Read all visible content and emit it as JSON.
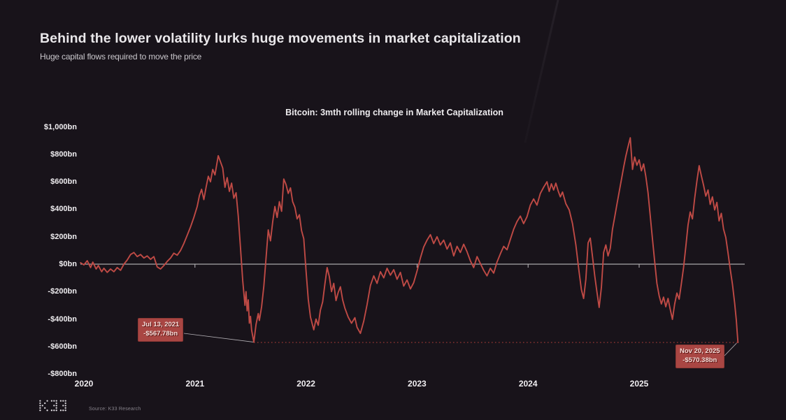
{
  "page": {
    "title": "Behind the lower volatility lurks huge movements in market capitalization",
    "subtitle": "Huge capital flows required to move the price"
  },
  "footer": {
    "source": "Source: K33 Research",
    "logo": "K33"
  },
  "colors": {
    "background": "#18131a",
    "line": "#bf4a45",
    "zero_line": "#cccccc",
    "dotted_line": "#8e3532",
    "annotation_bg": "#a94643",
    "annotation_text": "#f7dfdb",
    "axis_text": "#f0eef1"
  },
  "chart_data": {
    "type": "line",
    "title": "Bitcoin: 3mth rolling change in Market Capitalization",
    "xlabel": "",
    "ylabel": "",
    "x_ticks": [
      "2020",
      "2021",
      "2022",
      "2023",
      "2024",
      "2025"
    ],
    "x_tick_values": [
      2020,
      2021,
      2022,
      2023,
      2024,
      2025
    ],
    "y_ticks": [
      "$1,000bn",
      "$800bn",
      "$600bn",
      "$400bn",
      "$200bn",
      "$0bn",
      "-$200bn",
      "-$400bn",
      "-$600bn",
      "-$800bn"
    ],
    "y_tick_values": [
      1000,
      800,
      600,
      400,
      200,
      0,
      -200,
      -400,
      -600,
      -800
    ],
    "xlim": [
      2019.95,
      2025.95
    ],
    "ylim": [
      -800,
      1000
    ],
    "grid": false,
    "legend": "none",
    "zero_line_value": 0,
    "dotted_line_value": -570.38,
    "annotations": [
      {
        "date": "Jul 13, 2021",
        "value_label": "-$567.78bn",
        "x": 2021.53,
        "y": -567.78
      },
      {
        "date": "Nov 20, 2025",
        "value_label": "-$570.38bn",
        "x": 2025.89,
        "y": -570.38
      }
    ],
    "series": [
      {
        "name": "3mth rolling change in market capitalization ($bn)",
        "color": "#bf4a45",
        "points": [
          [
            2019.97,
            10
          ],
          [
            2020.0,
            -5
          ],
          [
            2020.03,
            25
          ],
          [
            2020.06,
            -25
          ],
          [
            2020.08,
            15
          ],
          [
            2020.11,
            -35
          ],
          [
            2020.13,
            -10
          ],
          [
            2020.16,
            -55
          ],
          [
            2020.18,
            -30
          ],
          [
            2020.21,
            -60
          ],
          [
            2020.24,
            -35
          ],
          [
            2020.27,
            -55
          ],
          [
            2020.3,
            -25
          ],
          [
            2020.33,
            -45
          ],
          [
            2020.36,
            0
          ],
          [
            2020.39,
            30
          ],
          [
            2020.42,
            70
          ],
          [
            2020.45,
            85
          ],
          [
            2020.48,
            55
          ],
          [
            2020.51,
            70
          ],
          [
            2020.54,
            45
          ],
          [
            2020.57,
            60
          ],
          [
            2020.6,
            35
          ],
          [
            2020.63,
            55
          ],
          [
            2020.66,
            -20
          ],
          [
            2020.69,
            -35
          ],
          [
            2020.72,
            -10
          ],
          [
            2020.75,
            20
          ],
          [
            2020.78,
            45
          ],
          [
            2020.81,
            80
          ],
          [
            2020.84,
            65
          ],
          [
            2020.87,
            100
          ],
          [
            2020.9,
            150
          ],
          [
            2020.93,
            210
          ],
          [
            2020.96,
            270
          ],
          [
            2020.99,
            340
          ],
          [
            2021.02,
            420
          ],
          [
            2021.04,
            500
          ],
          [
            2021.06,
            545
          ],
          [
            2021.08,
            470
          ],
          [
            2021.1,
            560
          ],
          [
            2021.12,
            640
          ],
          [
            2021.14,
            600
          ],
          [
            2021.16,
            690
          ],
          [
            2021.18,
            650
          ],
          [
            2021.21,
            790
          ],
          [
            2021.23,
            745
          ],
          [
            2021.25,
            700
          ],
          [
            2021.27,
            560
          ],
          [
            2021.29,
            630
          ],
          [
            2021.31,
            530
          ],
          [
            2021.33,
            590
          ],
          [
            2021.35,
            480
          ],
          [
            2021.37,
            520
          ],
          [
            2021.39,
            350
          ],
          [
            2021.41,
            120
          ],
          [
            2021.43,
            -120
          ],
          [
            2021.45,
            -300
          ],
          [
            2021.46,
            -200
          ],
          [
            2021.47,
            -340
          ],
          [
            2021.48,
            -260
          ],
          [
            2021.49,
            -430
          ],
          [
            2021.5,
            -380
          ],
          [
            2021.51,
            -480
          ],
          [
            2021.53,
            -567.78
          ],
          [
            2021.55,
            -440
          ],
          [
            2021.57,
            -360
          ],
          [
            2021.58,
            -410
          ],
          [
            2021.6,
            -310
          ],
          [
            2021.62,
            -160
          ],
          [
            2021.64,
            40
          ],
          [
            2021.66,
            250
          ],
          [
            2021.68,
            170
          ],
          [
            2021.7,
            310
          ],
          [
            2021.72,
            420
          ],
          [
            2021.74,
            340
          ],
          [
            2021.76,
            455
          ],
          [
            2021.78,
            385
          ],
          [
            2021.8,
            620
          ],
          [
            2021.82,
            580
          ],
          [
            2021.84,
            515
          ],
          [
            2021.86,
            555
          ],
          [
            2021.88,
            455
          ],
          [
            2021.9,
            415
          ],
          [
            2021.92,
            330
          ],
          [
            2021.94,
            360
          ],
          [
            2021.96,
            245
          ],
          [
            2021.98,
            185
          ],
          [
            2022.0,
            -45
          ],
          [
            2022.02,
            -255
          ],
          [
            2022.04,
            -385
          ],
          [
            2022.07,
            -478
          ],
          [
            2022.09,
            -400
          ],
          [
            2022.11,
            -445
          ],
          [
            2022.13,
            -335
          ],
          [
            2022.15,
            -275
          ],
          [
            2022.17,
            -145
          ],
          [
            2022.19,
            -25
          ],
          [
            2022.21,
            -90
          ],
          [
            2022.23,
            -200
          ],
          [
            2022.25,
            -140
          ],
          [
            2022.27,
            -265
          ],
          [
            2022.29,
            -205
          ],
          [
            2022.31,
            -165
          ],
          [
            2022.33,
            -260
          ],
          [
            2022.35,
            -320
          ],
          [
            2022.38,
            -385
          ],
          [
            2022.41,
            -430
          ],
          [
            2022.44,
            -390
          ],
          [
            2022.46,
            -460
          ],
          [
            2022.49,
            -504
          ],
          [
            2022.52,
            -415
          ],
          [
            2022.55,
            -295
          ],
          [
            2022.58,
            -155
          ],
          [
            2022.61,
            -85
          ],
          [
            2022.64,
            -140
          ],
          [
            2022.67,
            -55
          ],
          [
            2022.7,
            -100
          ],
          [
            2022.73,
            -30
          ],
          [
            2022.76,
            -80
          ],
          [
            2022.79,
            -40
          ],
          [
            2022.82,
            -110
          ],
          [
            2022.85,
            -60
          ],
          [
            2022.88,
            -160
          ],
          [
            2022.91,
            -115
          ],
          [
            2022.94,
            -180
          ],
          [
            2022.97,
            -135
          ],
          [
            2023.0,
            -50
          ],
          [
            2023.03,
            45
          ],
          [
            2023.06,
            125
          ],
          [
            2023.09,
            175
          ],
          [
            2023.12,
            215
          ],
          [
            2023.15,
            150
          ],
          [
            2023.18,
            200
          ],
          [
            2023.21,
            140
          ],
          [
            2023.24,
            175
          ],
          [
            2023.27,
            110
          ],
          [
            2023.3,
            155
          ],
          [
            2023.33,
            60
          ],
          [
            2023.36,
            130
          ],
          [
            2023.39,
            85
          ],
          [
            2023.42,
            145
          ],
          [
            2023.45,
            90
          ],
          [
            2023.48,
            25
          ],
          [
            2023.51,
            -25
          ],
          [
            2023.54,
            55
          ],
          [
            2023.57,
            5
          ],
          [
            2023.6,
            -45
          ],
          [
            2023.63,
            -85
          ],
          [
            2023.66,
            -30
          ],
          [
            2023.69,
            -65
          ],
          [
            2023.72,
            15
          ],
          [
            2023.75,
            75
          ],
          [
            2023.78,
            130
          ],
          [
            2023.81,
            105
          ],
          [
            2023.84,
            180
          ],
          [
            2023.87,
            255
          ],
          [
            2023.9,
            310
          ],
          [
            2023.93,
            350
          ],
          [
            2023.96,
            295
          ],
          [
            2023.99,
            345
          ],
          [
            2024.02,
            430
          ],
          [
            2024.05,
            475
          ],
          [
            2024.08,
            430
          ],
          [
            2024.11,
            515
          ],
          [
            2024.14,
            560
          ],
          [
            2024.17,
            600
          ],
          [
            2024.19,
            530
          ],
          [
            2024.21,
            585
          ],
          [
            2024.23,
            540
          ],
          [
            2024.25,
            590
          ],
          [
            2024.27,
            535
          ],
          [
            2024.29,
            490
          ],
          [
            2024.31,
            525
          ],
          [
            2024.34,
            440
          ],
          [
            2024.37,
            395
          ],
          [
            2024.4,
            295
          ],
          [
            2024.43,
            140
          ],
          [
            2024.46,
            -60
          ],
          [
            2024.48,
            -185
          ],
          [
            2024.5,
            -250
          ],
          [
            2024.52,
            -110
          ],
          [
            2024.54,
            155
          ],
          [
            2024.56,
            190
          ],
          [
            2024.58,
            55
          ],
          [
            2024.6,
            -85
          ],
          [
            2024.62,
            -205
          ],
          [
            2024.64,
            -315
          ],
          [
            2024.66,
            -170
          ],
          [
            2024.68,
            85
          ],
          [
            2024.7,
            140
          ],
          [
            2024.72,
            60
          ],
          [
            2024.74,
            115
          ],
          [
            2024.76,
            255
          ],
          [
            2024.78,
            345
          ],
          [
            2024.8,
            435
          ],
          [
            2024.82,
            525
          ],
          [
            2024.84,
            615
          ],
          [
            2024.86,
            705
          ],
          [
            2024.88,
            785
          ],
          [
            2024.9,
            855
          ],
          [
            2024.92,
            920
          ],
          [
            2024.94,
            690
          ],
          [
            2024.96,
            780
          ],
          [
            2024.98,
            720
          ],
          [
            2025.0,
            760
          ],
          [
            2025.02,
            680
          ],
          [
            2025.04,
            730
          ],
          [
            2025.06,
            640
          ],
          [
            2025.08,
            520
          ],
          [
            2025.1,
            350
          ],
          [
            2025.12,
            180
          ],
          [
            2025.14,
            20
          ],
          [
            2025.16,
            -140
          ],
          [
            2025.18,
            -230
          ],
          [
            2025.2,
            -290
          ],
          [
            2025.22,
            -240
          ],
          [
            2025.24,
            -310
          ],
          [
            2025.26,
            -250
          ],
          [
            2025.28,
            -330
          ],
          [
            2025.3,
            -402
          ],
          [
            2025.32,
            -290
          ],
          [
            2025.34,
            -210
          ],
          [
            2025.36,
            -255
          ],
          [
            2025.38,
            -145
          ],
          [
            2025.4,
            -25
          ],
          [
            2025.42,
            125
          ],
          [
            2025.44,
            285
          ],
          [
            2025.46,
            380
          ],
          [
            2025.48,
            330
          ],
          [
            2025.5,
            480
          ],
          [
            2025.52,
            605
          ],
          [
            2025.54,
            717
          ],
          [
            2025.56,
            645
          ],
          [
            2025.58,
            575
          ],
          [
            2025.6,
            495
          ],
          [
            2025.62,
            540
          ],
          [
            2025.64,
            435
          ],
          [
            2025.66,
            490
          ],
          [
            2025.68,
            395
          ],
          [
            2025.7,
            450
          ],
          [
            2025.72,
            315
          ],
          [
            2025.74,
            370
          ],
          [
            2025.76,
            255
          ],
          [
            2025.78,
            195
          ],
          [
            2025.8,
            85
          ],
          [
            2025.82,
            -35
          ],
          [
            2025.84,
            -145
          ],
          [
            2025.86,
            -285
          ],
          [
            2025.875,
            -410
          ],
          [
            2025.882,
            -490
          ],
          [
            2025.89,
            -570.38
          ]
        ]
      }
    ]
  }
}
